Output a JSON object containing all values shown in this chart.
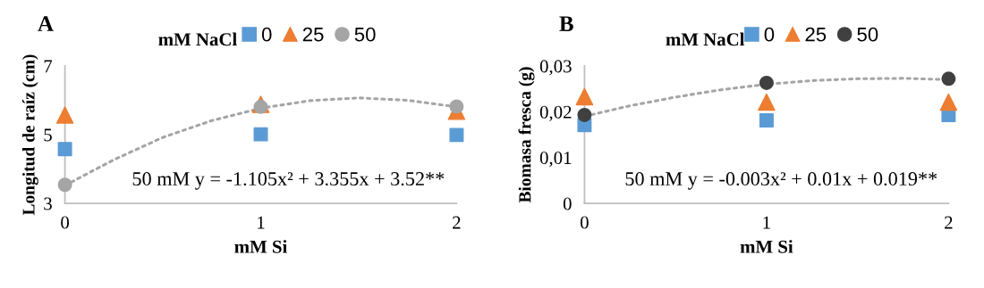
{
  "chart_data": [
    {
      "type": "scatter",
      "title": "A",
      "xlabel": "mM Si",
      "ylabel": "Longitud de raíz (cm)",
      "legend_title": "mM NaCl",
      "x": [
        0,
        1,
        2
      ],
      "xlim": [
        0,
        2
      ],
      "xticks": [
        0,
        1,
        2
      ],
      "ylim": [
        3,
        7
      ],
      "yticks": [
        3,
        5,
        7
      ],
      "grid": false,
      "legend": "top",
      "series": [
        {
          "name": "0",
          "color": "#5b9bd5",
          "marker": "square",
          "values": [
            4.58,
            5.01,
            4.99
          ]
        },
        {
          "name": "25",
          "color": "#ed7d31",
          "marker": "triangle",
          "values": [
            5.57,
            5.88,
            5.68
          ]
        },
        {
          "name": "50",
          "color": "#a5a5a5",
          "marker": "circle",
          "values": [
            3.54,
            5.81,
            5.82
          ]
        },
        {
          "type": "line",
          "color": "#a5a5a5",
          "marker": "none",
          "line_style": "dotted",
          "x": [
            0,
            0.25,
            0.5,
            0.75,
            1,
            1.25,
            1.5,
            1.75,
            2
          ],
          "values": [
            3.52,
            4.27,
            4.92,
            5.41,
            5.77,
            5.99,
            6.07,
            6.0,
            5.81
          ]
        }
      ],
      "annotations": [
        "50 mM y = -1.105x² + 3.355x + 3.52**"
      ]
    },
    {
      "type": "scatter",
      "title": "B",
      "xlabel": "mM Si",
      "ylabel": "Biomasa fresca (g)",
      "legend_title": "mM NaCl",
      "x": [
        0,
        1,
        2
      ],
      "xlim": [
        0,
        2
      ],
      "xticks": [
        0,
        1,
        2
      ],
      "ylim": [
        0,
        0.03
      ],
      "yticks": [
        0,
        {
          "value": 0.01,
          "label": "0,01"
        },
        {
          "value": 0.02,
          "label": "0,02"
        },
        {
          "value": 0.03,
          "label": "0,03"
        }
      ],
      "grid": false,
      "legend": "top",
      "series": [
        {
          "name": "0",
          "color": "#5b9bd5",
          "marker": "square",
          "values": [
            0.0171,
            0.0181,
            0.0193
          ]
        },
        {
          "name": "25",
          "color": "#ed7d31",
          "marker": "triangle",
          "values": [
            0.0233,
            0.0221,
            0.0221
          ]
        },
        {
          "name": "50",
          "color": "#404040",
          "marker": "circle",
          "values": [
            0.0193,
            0.0263,
            0.0272
          ]
        },
        {
          "type": "line",
          "color": "#a5a5a5",
          "marker": "none",
          "line_style": "dotted",
          "x": [
            0,
            0.25,
            0.5,
            0.75,
            1,
            1.25,
            1.5,
            1.75,
            2
          ],
          "values": [
            0.019,
            0.0213,
            0.0232,
            0.0248,
            0.026,
            0.0268,
            0.0272,
            0.0273,
            0.027
          ]
        }
      ],
      "annotations": [
        "50 mM y = -0.003x² + 0.01x + 0.019**"
      ]
    }
  ]
}
